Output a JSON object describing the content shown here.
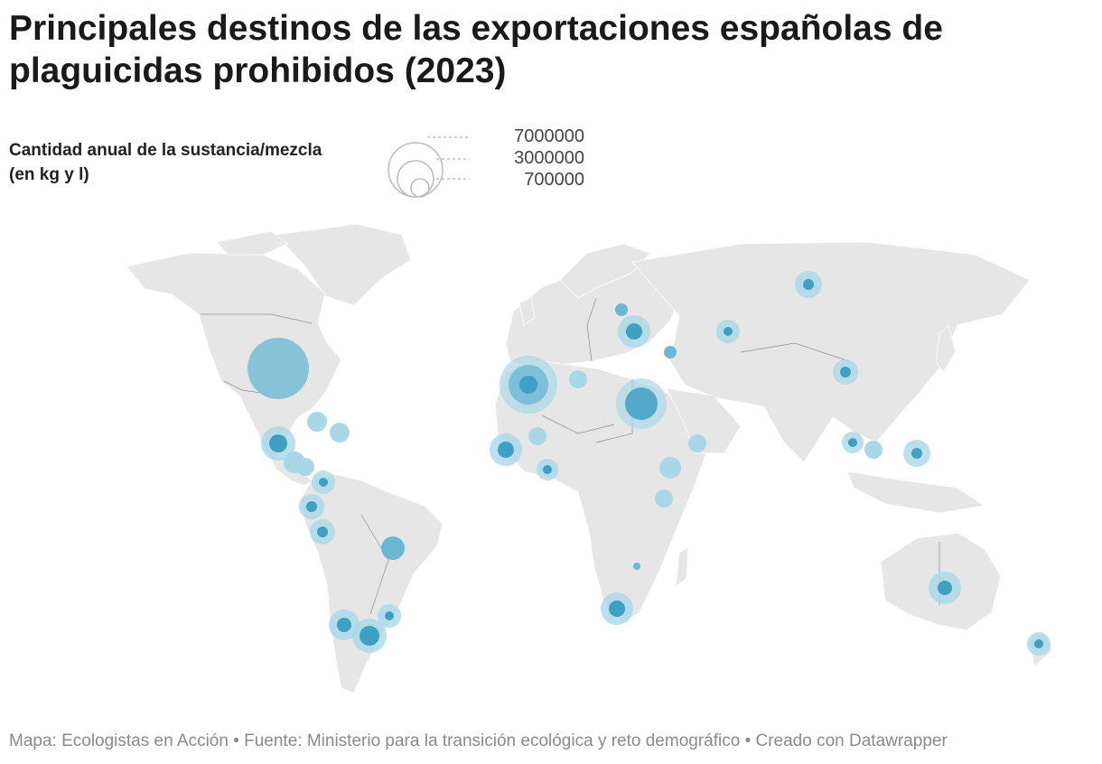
{
  "title": "Principales destinos de las exportaciones españolas de plaguicidas prohibidos (2023)",
  "legend": {
    "label": "Cantidad anual de la sustancia/mezcla (en kg y l)",
    "values": [
      "7000000",
      "3000000",
      "700000"
    ]
  },
  "footer": "Mapa: Ecologistas en Acción • Fuente: Ministerio para la transición ecológica y reto demográfico • Creado con Datawrapper",
  "colors": {
    "land": "#e6e6e6",
    "border": "#8f8f8f",
    "bubble_outer": "#a9d7e8",
    "bubble_inner": "#3fa0c4",
    "bubble_us": "#7bbfd6"
  },
  "bubbles": [
    {
      "region": "Estados Unidos",
      "size": "xl"
    },
    {
      "region": "Marruecos",
      "size": "l"
    },
    {
      "region": "Egipto",
      "size": "l"
    },
    {
      "region": "Rusia",
      "size": "s"
    },
    {
      "region": "Ucrania",
      "size": "m"
    },
    {
      "region": "Australia",
      "size": "m"
    },
    {
      "region": "Argentina",
      "size": "m"
    },
    {
      "region": "Brasil",
      "size": "s"
    },
    {
      "region": "Sudáfrica",
      "size": "m"
    }
  ]
}
